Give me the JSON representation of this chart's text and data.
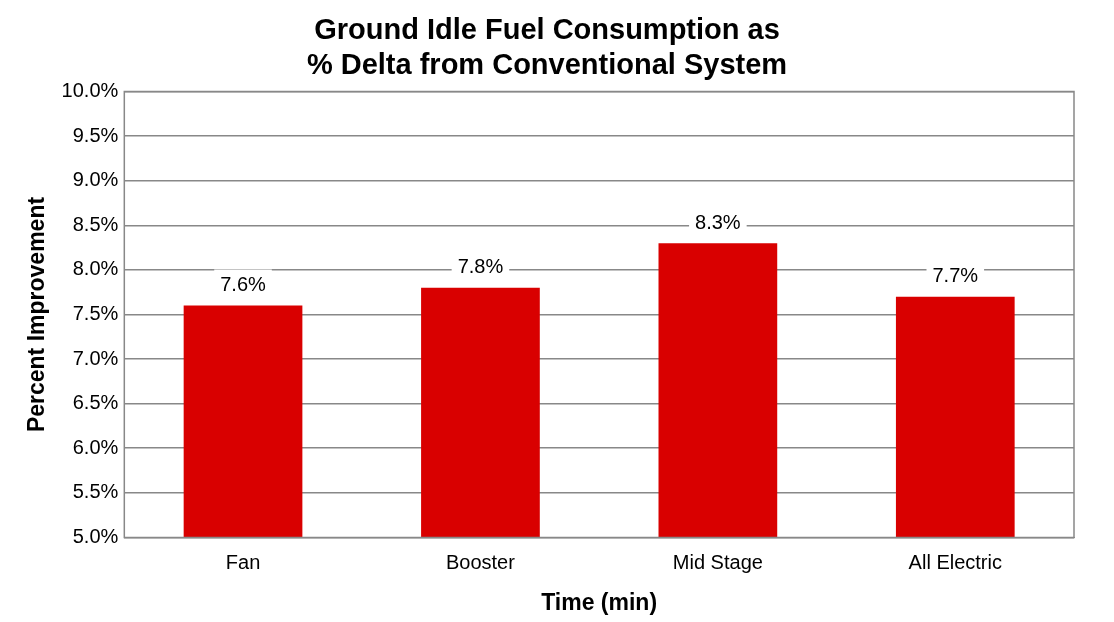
{
  "chart_data": {
    "type": "bar",
    "title": [
      "Ground Idle Fuel Consumption as",
      "% Delta from Conventional System"
    ],
    "xlabel": "Time (min)",
    "ylabel": "Percent Improvement",
    "categories": [
      "Fan",
      "Booster",
      "Mid Stage",
      "All Electric"
    ],
    "values": [
      7.6,
      7.8,
      8.3,
      7.7
    ],
    "value_labels": [
      "7.6%",
      "7.8%",
      "8.3%",
      "7.7%"
    ],
    "color": "#d90000",
    "ylim": [
      5,
      10
    ],
    "yticks": [
      {
        "value": 5,
        "label": "5.0%"
      },
      {
        "value": 5.5,
        "label": "5.5%"
      },
      {
        "value": 6,
        "label": "6.0%"
      },
      {
        "value": 6.5,
        "label": "6.5%"
      },
      {
        "value": 7,
        "label": "7.0%"
      },
      {
        "value": 7.5,
        "label": "7.5%"
      },
      {
        "value": 8,
        "label": "8.0%"
      },
      {
        "value": 8.5,
        "label": "8.5%"
      },
      {
        "value": 9,
        "label": "9.0%"
      },
      {
        "value": 9.5,
        "label": "9.5%"
      },
      {
        "value": 10,
        "label": "10.0%"
      }
    ],
    "grid": "y",
    "legend": false
  }
}
